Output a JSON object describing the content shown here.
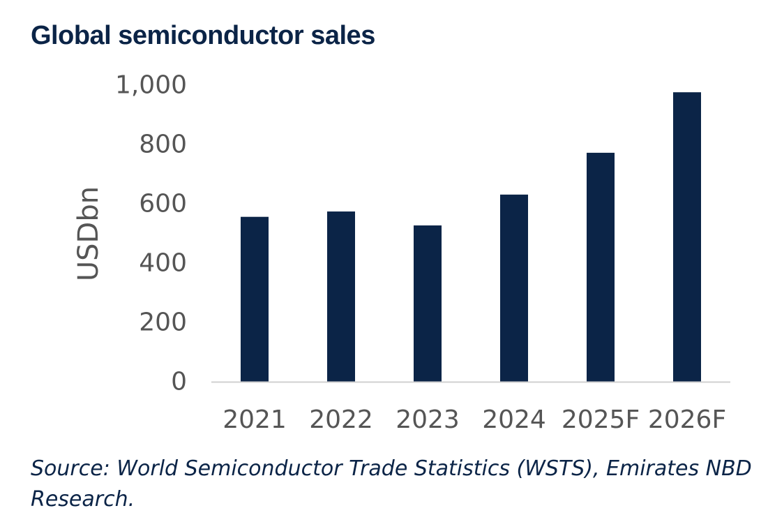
{
  "chart_data": {
    "type": "bar",
    "title": "Global semiconductor sales",
    "categories": [
      "2021",
      "2022",
      "2023",
      "2024",
      "2025F",
      "2026F"
    ],
    "values": [
      556,
      574,
      527,
      631,
      772,
      976
    ],
    "xlabel": "",
    "ylabel": "USDbn",
    "ylim": [
      0,
      1000
    ],
    "yticks": [
      0,
      200,
      400,
      600,
      800,
      1000
    ],
    "ytick_labels": [
      "0",
      "200",
      "400",
      "600",
      "800",
      "1,000"
    ],
    "grid": false,
    "legend": "none",
    "bar_color": "#0b2447",
    "axis_color": "#d0d0d0"
  },
  "source": "Source: World Semiconductor Trade Statistics (WSTS), Emirates NBD Research."
}
